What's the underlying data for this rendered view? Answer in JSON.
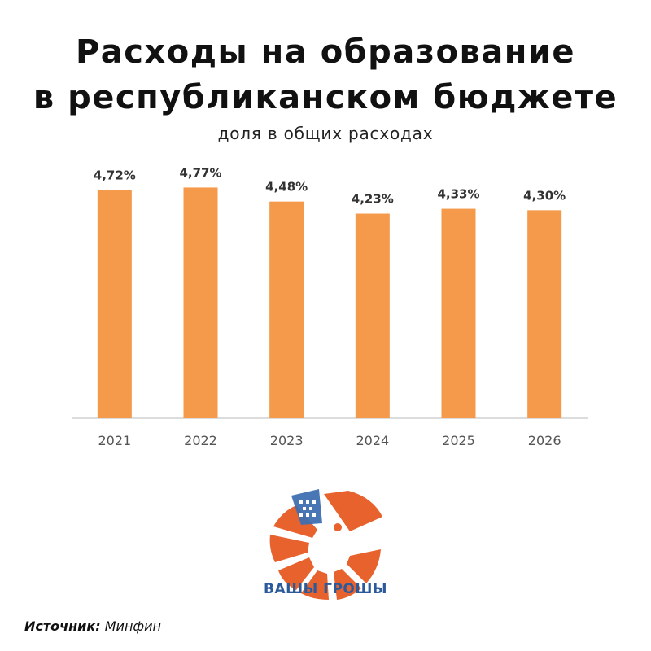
{
  "title_line1": "Расходы на образование",
  "title_line2": "в республиканском бюджете",
  "subtitle": "доля в общих расходах",
  "source_label": "Источник:",
  "source_value": "Минфин",
  "brand": "ВАШЫ ГРОШЫ",
  "colors": {
    "bar": "#f59a4a",
    "brand": "#2b5a9b",
    "logo": "#e8622e",
    "axis": "#d0d0d0"
  },
  "chart_data": {
    "type": "bar",
    "categories": [
      "2021",
      "2022",
      "2023",
      "2024",
      "2025",
      "2026"
    ],
    "values": [
      4.72,
      4.77,
      4.48,
      4.23,
      4.33,
      4.3
    ],
    "data_labels": [
      "4,72%",
      "4,77%",
      "4,48%",
      "4,23%",
      "4,33%",
      "4,30%"
    ],
    "title": "Расходы на образование в республиканском бюджете",
    "subtitle": "доля в общих расходах",
    "ylim": [
      0,
      5
    ],
    "grid": false,
    "legend": "none"
  }
}
